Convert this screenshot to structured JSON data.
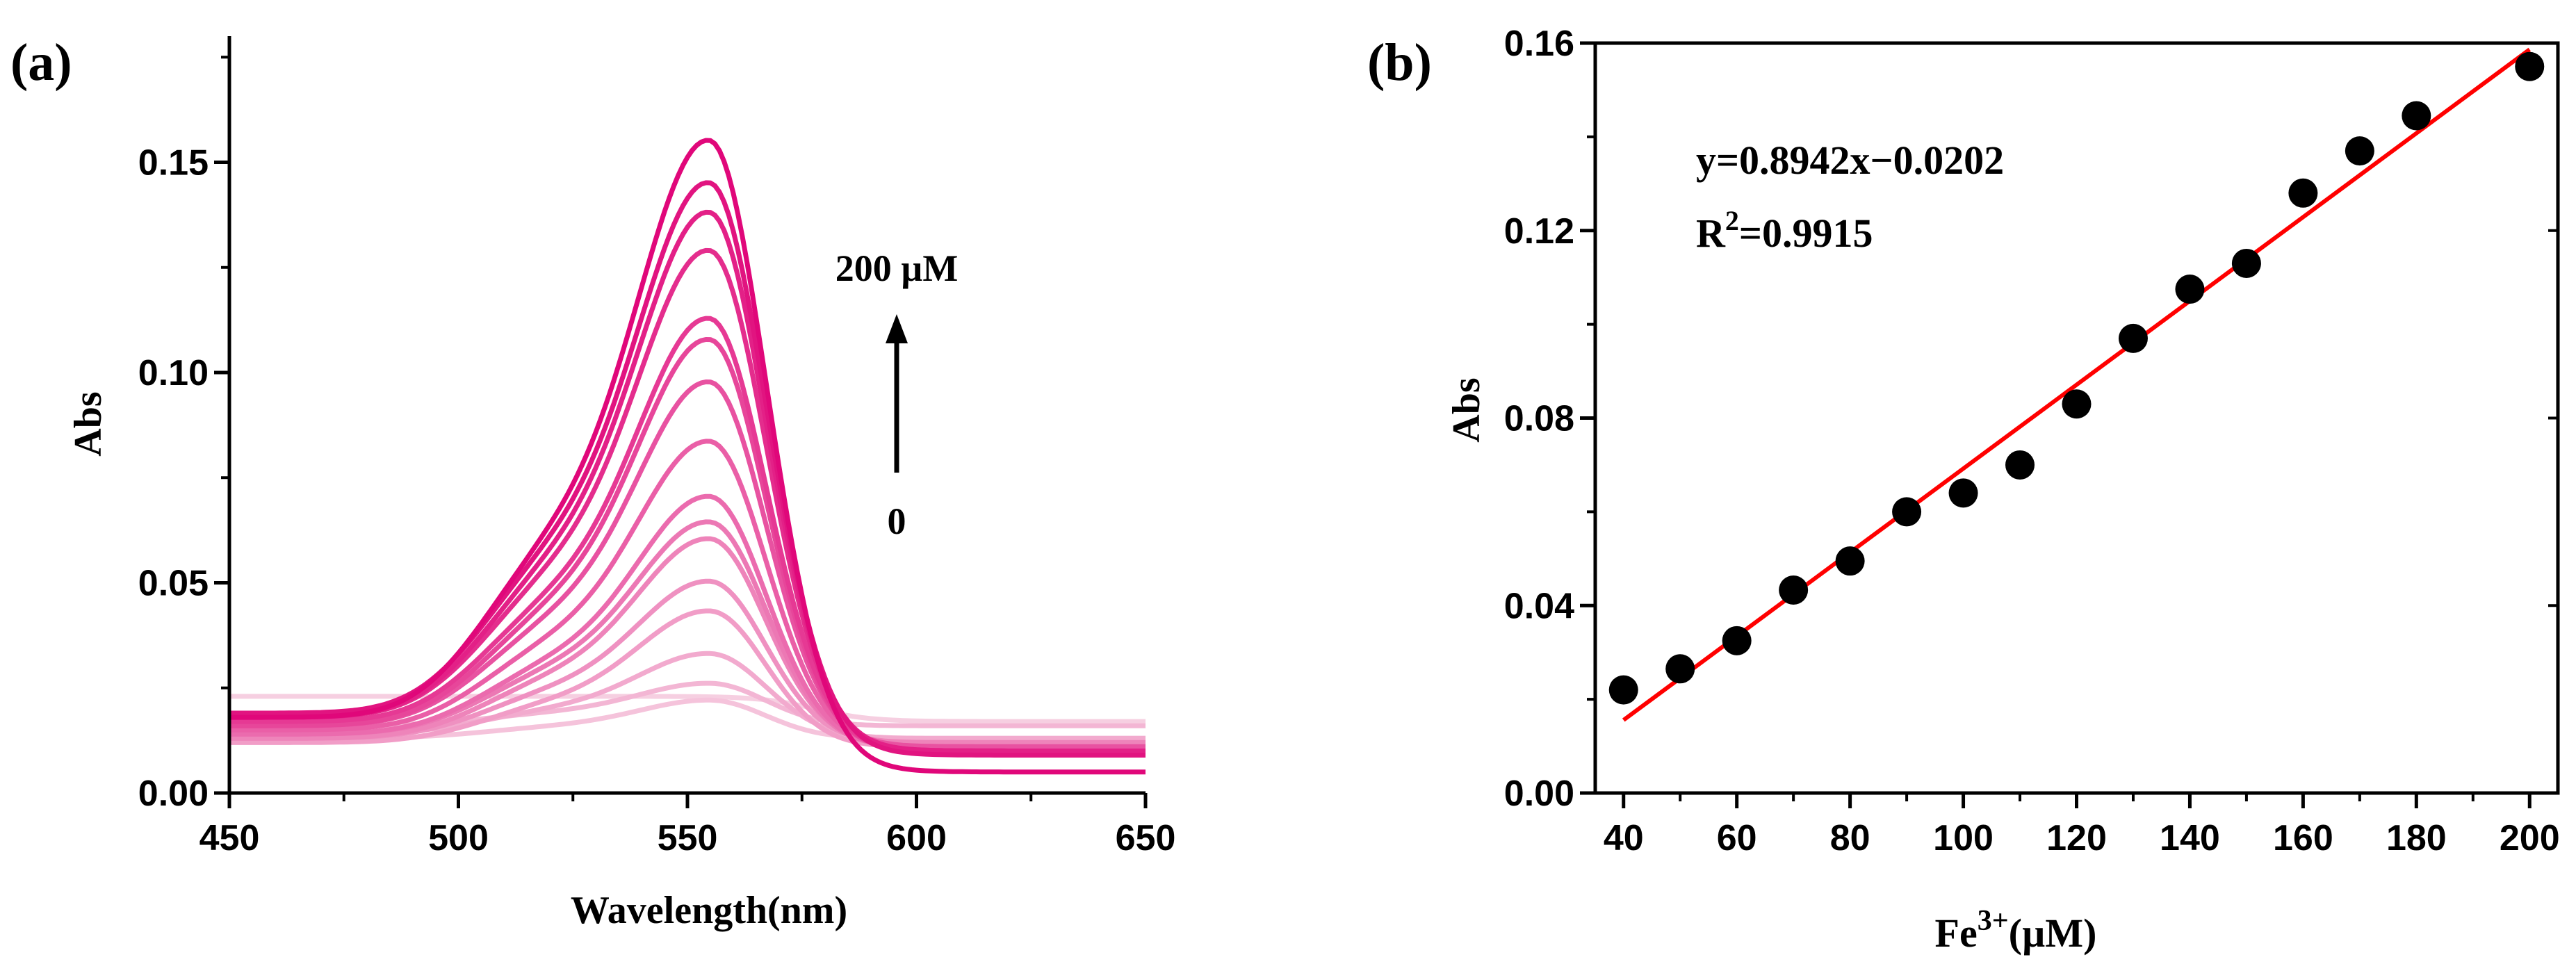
{
  "colors": {
    "axis": "#000000",
    "fit_line": "#ff0000",
    "points": "#000000",
    "spectra_start": "#f6cfe1",
    "spectra_end": "#e0077a"
  },
  "chart_data": [
    {
      "type": "line",
      "panel_label": "(a)",
      "xlabel": "Wavelength(nm)",
      "ylabel": "Abs",
      "xlim": [
        450,
        650
      ],
      "ylim": [
        0,
        0.18
      ],
      "xticks": [
        450,
        500,
        550,
        600,
        650
      ],
      "yticks": [
        0.0,
        0.05,
        0.1,
        0.15
      ],
      "ytick_labels": [
        "0.00",
        "0.05",
        "0.10",
        "0.15"
      ],
      "annotation_top": "200 µM",
      "annotation_bottom": "0",
      "peak_wavelength": 555,
      "shoulder_wavelength": 518,
      "series_peak_abs": [
        0.018,
        0.022,
        0.026,
        0.033,
        0.043,
        0.05,
        0.06,
        0.064,
        0.07,
        0.083,
        0.097,
        0.107,
        0.112,
        0.128,
        0.137,
        0.144,
        0.154
      ],
      "series_baseline_abs": [
        0.023,
        0.013,
        0.016,
        0.014,
        0.012,
        0.013,
        0.013,
        0.014,
        0.014,
        0.015,
        0.016,
        0.016,
        0.017,
        0.018,
        0.018,
        0.019,
        0.018
      ],
      "series_tail_abs": [
        0.017,
        0.013,
        0.016,
        0.013,
        0.011,
        0.012,
        0.012,
        0.011,
        0.011,
        0.011,
        0.011,
        0.01,
        0.01,
        0.01,
        0.01,
        0.009,
        0.005
      ]
    },
    {
      "type": "scatter",
      "panel_label": "(b)",
      "xlabel": "Fe",
      "xlabel_sup": "3+",
      "xlabel_tail": "(µM)",
      "ylabel": "Abs",
      "xlim": [
        35,
        205
      ],
      "ylim": [
        0,
        0.16
      ],
      "xticks": [
        40,
        60,
        80,
        100,
        120,
        140,
        160,
        180,
        200
      ],
      "yticks": [
        0.0,
        0.04,
        0.08,
        0.12,
        0.16
      ],
      "ytick_labels": [
        "0.00",
        "0.04",
        "0.08",
        "0.12",
        "0.16"
      ],
      "x": [
        40,
        50,
        60,
        70,
        80,
        90,
        100,
        110,
        120,
        130,
        140,
        150,
        160,
        170,
        180,
        200
      ],
      "y": [
        0.022,
        0.0265,
        0.0325,
        0.0433,
        0.0495,
        0.06,
        0.064,
        0.07,
        0.083,
        0.097,
        0.1075,
        0.113,
        0.128,
        0.137,
        0.1445,
        0.155
      ],
      "fit": {
        "slope": 0.8942,
        "intercept": -0.0202,
        "x_range": [
          40,
          200
        ]
      },
      "equation": "y=0.8942x−0.0202",
      "r2_prefix": "R",
      "r2_sup": "2",
      "r2_value": "=0.9915"
    }
  ]
}
